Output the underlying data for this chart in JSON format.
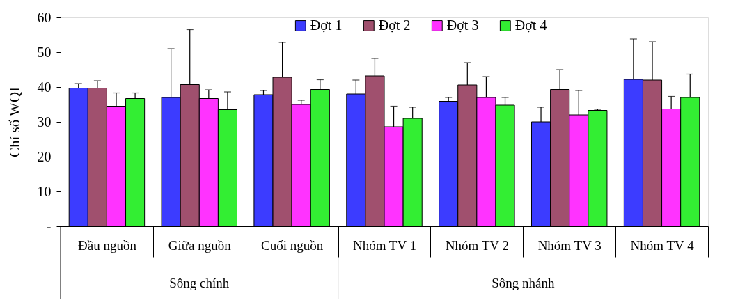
{
  "chart_data": {
    "type": "bar",
    "ylabel": "Chỉ số WQI",
    "categories": [
      "Đầu nguồn",
      "Giữa nguồn",
      "Cuối nguồn",
      "Nhóm TV 1",
      "Nhóm TV 2",
      "Nhóm TV 3",
      "Nhóm TV 4"
    ],
    "series": [
      {
        "name": "Đợt 1",
        "color": "#3c3cff",
        "values": [
          39.7,
          37.0,
          37.8,
          38.0,
          35.9,
          30.0,
          42.2
        ],
        "errors": [
          [
            39.7,
            41.0
          ],
          [
            37.0,
            51.0
          ],
          [
            37.8,
            39.0
          ],
          [
            38.0,
            42.0
          ],
          [
            35.9,
            37.0
          ],
          [
            30.0,
            34.2
          ],
          [
            42.2,
            53.8
          ]
        ]
      },
      {
        "name": "Đợt 2",
        "color": "#a0506e",
        "values": [
          39.7,
          40.7,
          42.8,
          43.2,
          40.6,
          39.3,
          42.0
        ],
        "errors": [
          [
            39.7,
            41.8
          ],
          [
            40.7,
            56.5
          ],
          [
            42.8,
            52.8
          ],
          [
            43.2,
            48.2
          ],
          [
            40.6,
            47.0
          ],
          [
            39.3,
            45.0
          ],
          [
            42.0,
            53.0
          ]
        ]
      },
      {
        "name": "Đợt 3",
        "color": "#ff33ff",
        "values": [
          34.5,
          36.7,
          35.0,
          28.6,
          37.0,
          32.0,
          33.7
        ],
        "errors": [
          [
            34.5,
            38.3
          ],
          [
            36.7,
            39.2
          ],
          [
            35.0,
            36.2
          ],
          [
            28.6,
            34.5
          ],
          [
            37.0,
            43.0
          ],
          [
            32.0,
            39.0
          ],
          [
            33.7,
            37.3
          ]
        ]
      },
      {
        "name": "Đợt 4",
        "color": "#33ee33",
        "values": [
          36.7,
          33.5,
          39.3,
          31.0,
          34.8,
          33.3,
          37.0
        ],
        "errors": [
          [
            36.7,
            38.3
          ],
          [
            33.5,
            38.6
          ],
          [
            39.3,
            42.1
          ],
          [
            31.0,
            34.2
          ],
          [
            34.8,
            37.0
          ],
          [
            33.3,
            33.6
          ],
          [
            37.0,
            43.7
          ]
        ]
      }
    ],
    "ylim": [
      0,
      60
    ],
    "yticks": [
      {
        "value": 0,
        "label": "-"
      },
      10,
      20,
      30,
      40,
      50,
      60
    ],
    "annotations": [
      "Sông chính",
      "Sông nhánh"
    ],
    "legend": "top right",
    "grid": false
  }
}
